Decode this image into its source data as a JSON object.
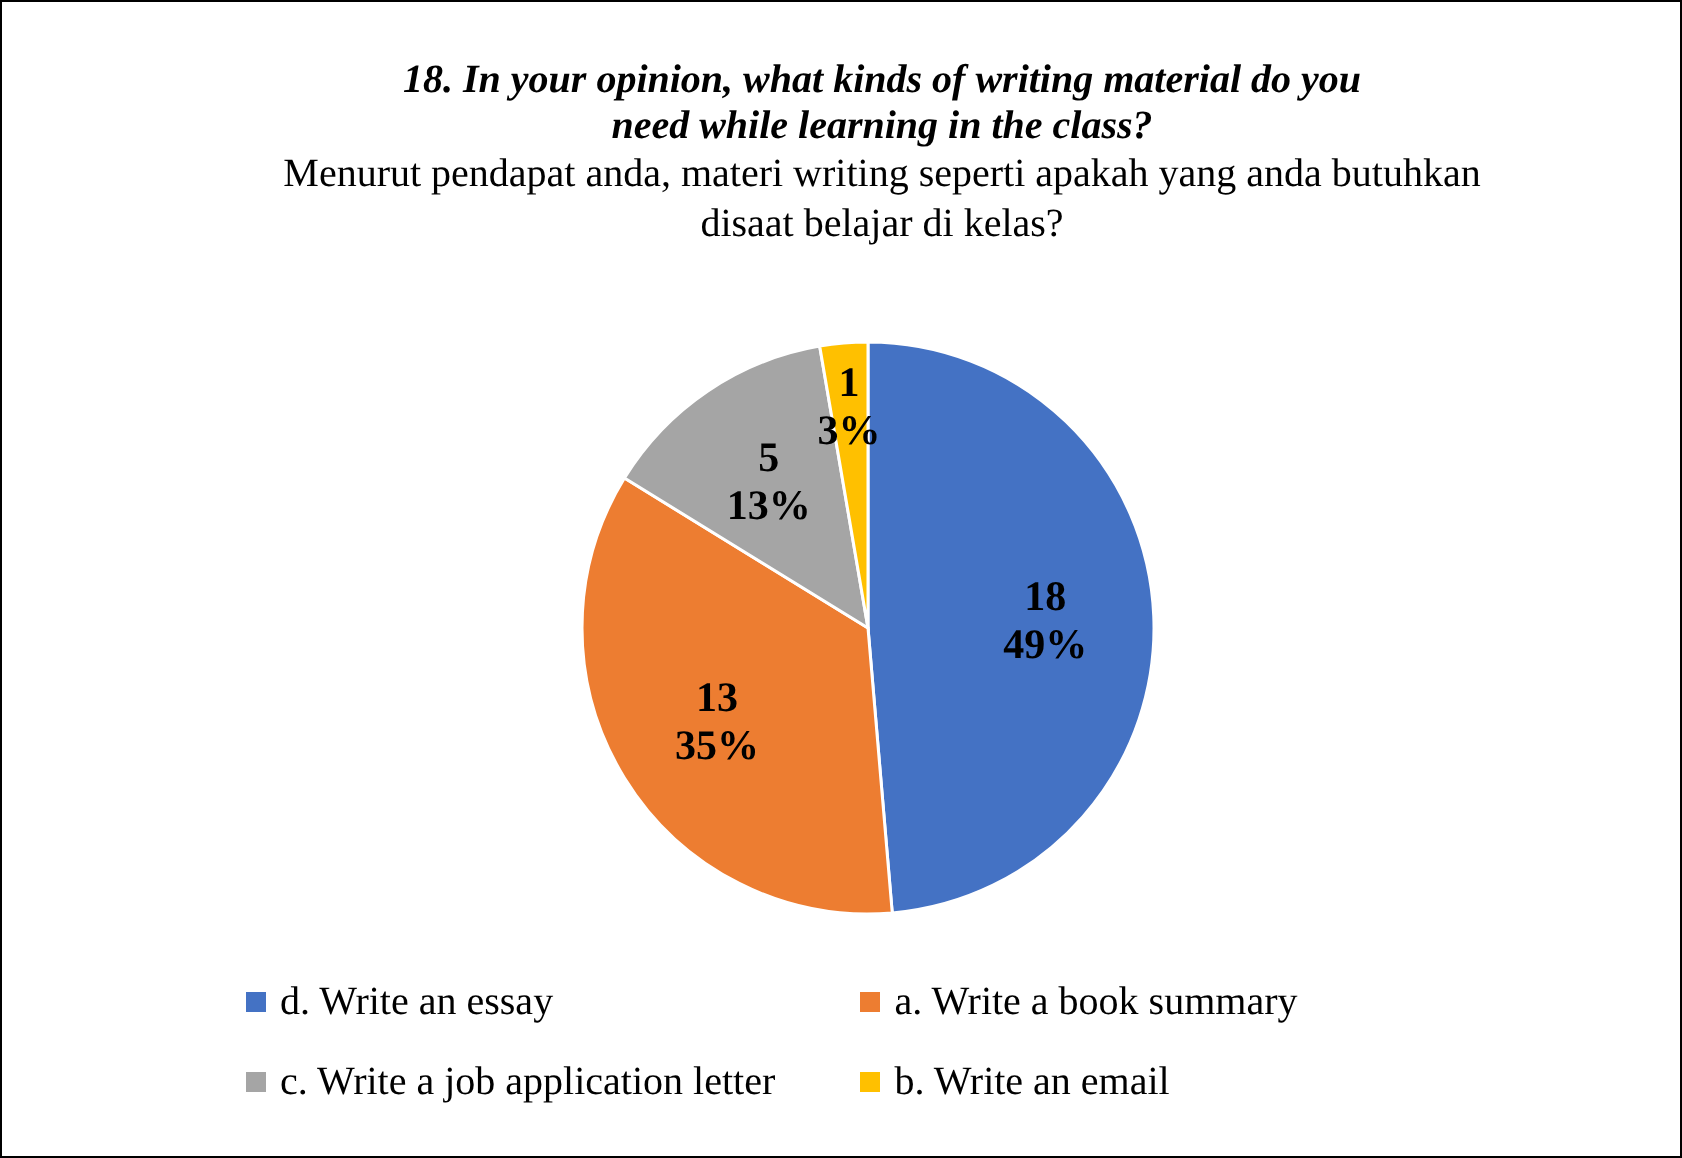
{
  "chart_data": {
    "type": "pie",
    "title": "18. In your opinion, what kinds of writing material do you need while learning in the class?",
    "subtitle": "Menurut pendapat anda, materi writing seperti apakah yang anda butuhkan disaat belajar di kelas?",
    "categories": [
      "d. Write an essay",
      "a. Write a book summary",
      "c. Write a job application letter",
      "b. Write an email"
    ],
    "values": [
      18,
      13,
      5,
      1
    ],
    "colors": [
      "#4472c4",
      "#ed7d31",
      "#a5a5a5",
      "#ffc000"
    ],
    "value_labels": [
      "18\n49%",
      "13\n35%",
      "5\n13%",
      "1\n3%"
    ],
    "legend": "bottom"
  }
}
